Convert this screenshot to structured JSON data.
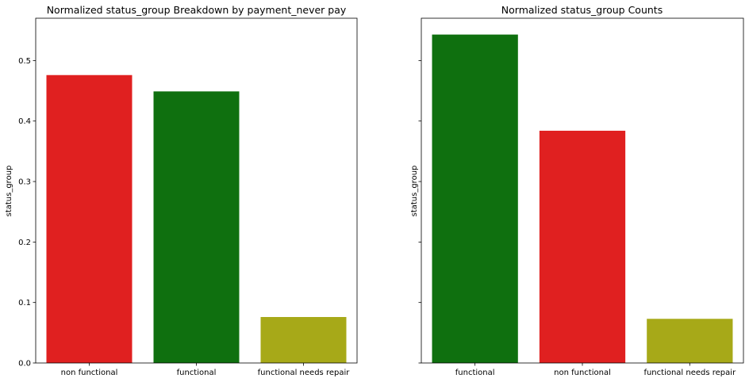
{
  "chart_data": [
    {
      "type": "bar",
      "title": "Normalized status_group Breakdown by payment_never pay",
      "xlabel": "",
      "ylabel": "status_group",
      "categories": [
        "non functional",
        "functional",
        "functional needs repair"
      ],
      "values": [
        0.476,
        0.449,
        0.076
      ],
      "colors": [
        "#e02020",
        "#0f700f",
        "#a7a918"
      ],
      "ylim": [
        0,
        0.57
      ],
      "yticks": [
        "0.0",
        "0.1",
        "0.2",
        "0.3",
        "0.4",
        "0.5"
      ],
      "grid": false
    },
    {
      "type": "bar",
      "title": "Normalized status_group Counts",
      "xlabel": "",
      "ylabel": "status_group",
      "categories": [
        "functional",
        "non functional",
        "functional needs repair"
      ],
      "values": [
        0.543,
        0.384,
        0.073
      ],
      "colors": [
        "#0f700f",
        "#e02020",
        "#a7a918"
      ],
      "ylim": [
        0,
        0.57
      ],
      "yticks": [
        "0.0",
        "0.1",
        "0.2",
        "0.3",
        "0.4",
        "0.5"
      ],
      "grid": false,
      "shared_y": true
    }
  ]
}
